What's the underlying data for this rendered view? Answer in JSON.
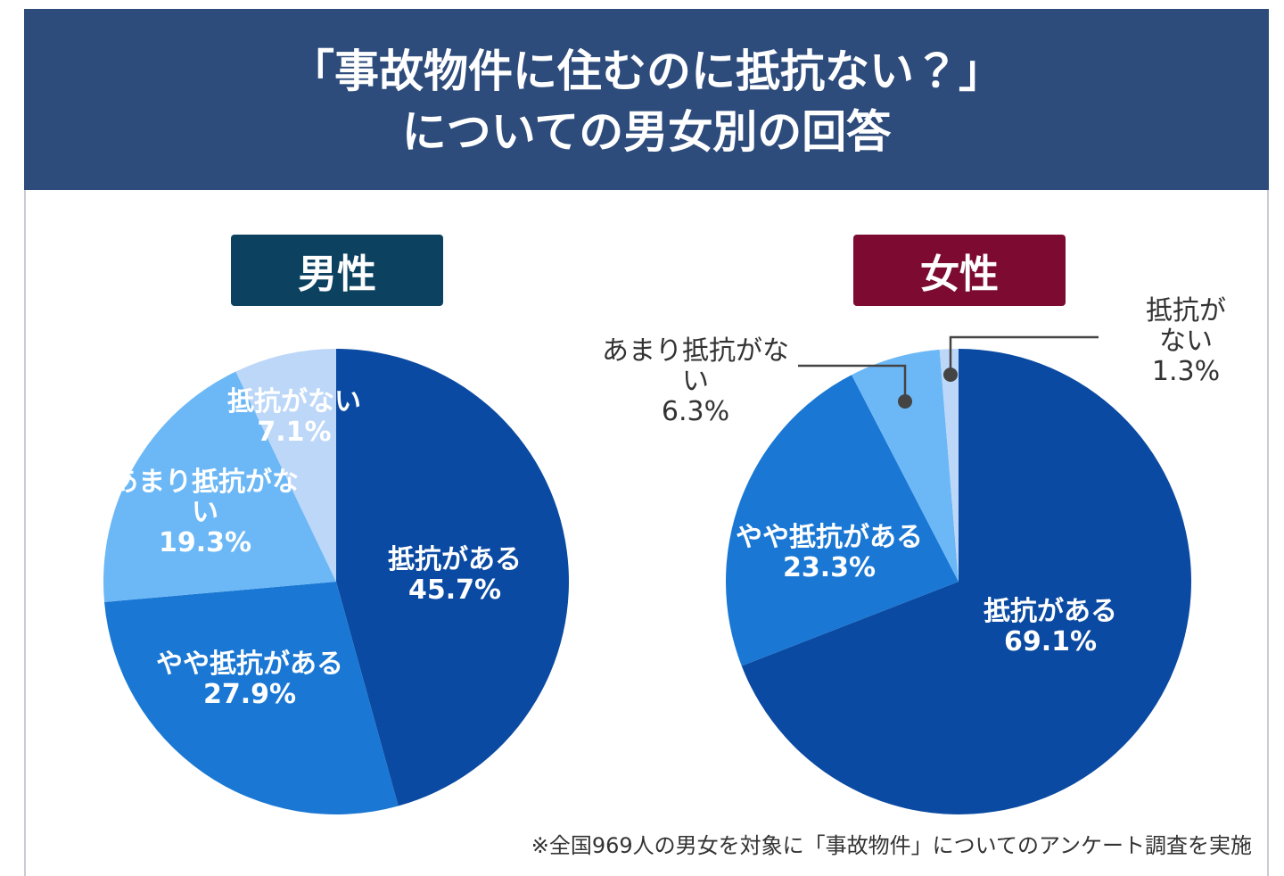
{
  "title": [
    "「事故物件に住むのに抵抗ない？」",
    "についての男女別の回答"
  ],
  "note": "※全国969人の男女を対象に「事故物件」についてのアンケート調査を実施",
  "chart_data": [
    {
      "type": "pie",
      "title": "男性",
      "title_color": "#0c4160",
      "categories": [
        "抵抗がある",
        "やや抵抗がある",
        "あまり抵抗がない",
        "抵抗がない"
      ],
      "values": [
        45.7,
        27.9,
        19.3,
        7.1
      ],
      "value_labels": [
        "45.7%",
        "27.9%",
        "19.3%",
        "7.1%"
      ],
      "colors": [
        "#0b4aa2",
        "#1a78d4",
        "#6cb8f6",
        "#bcd7f8"
      ]
    },
    {
      "type": "pie",
      "title": "女性",
      "title_color": "#7c0a31",
      "categories": [
        "抵抗がある",
        "やや抵抗がある",
        "あまり抵抗がない",
        "抵抗がない"
      ],
      "values": [
        69.1,
        23.3,
        6.3,
        1.3
      ],
      "value_labels": [
        "69.1%",
        "23.3%",
        "6.3%",
        "1.3%"
      ],
      "colors": [
        "#0b4aa2",
        "#1a78d4",
        "#6cb8f6",
        "#bcd7f8"
      ]
    }
  ]
}
